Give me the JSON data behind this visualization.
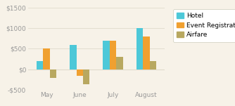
{
  "categories": [
    "May",
    "June",
    "July",
    "August"
  ],
  "series": {
    "Hotel": [
      200,
      600,
      700,
      1000
    ],
    "Event Registration": [
      500,
      -150,
      700,
      800
    ],
    "Airfare": [
      -200,
      -350,
      300,
      200
    ]
  },
  "colors": {
    "Hotel": "#4DC8D8",
    "Event Registration": "#F0A030",
    "Airfare": "#B8A860"
  },
  "ylim": [
    -500,
    1500
  ],
  "yticks": [
    -500,
    0,
    500,
    1000,
    1500
  ],
  "ytick_labels": [
    "-$500",
    "$0",
    "$500",
    "$1000",
    "$1500"
  ],
  "background_color": "#F7F2E8",
  "grid_color": "#E0DBCC",
  "legend_labels": [
    "Hotel",
    "Event Registration",
    "Airfare"
  ],
  "bar_width": 0.2,
  "tick_fontsize": 6.5,
  "legend_fontsize": 6.5,
  "axis_color": "#AAAAAA"
}
